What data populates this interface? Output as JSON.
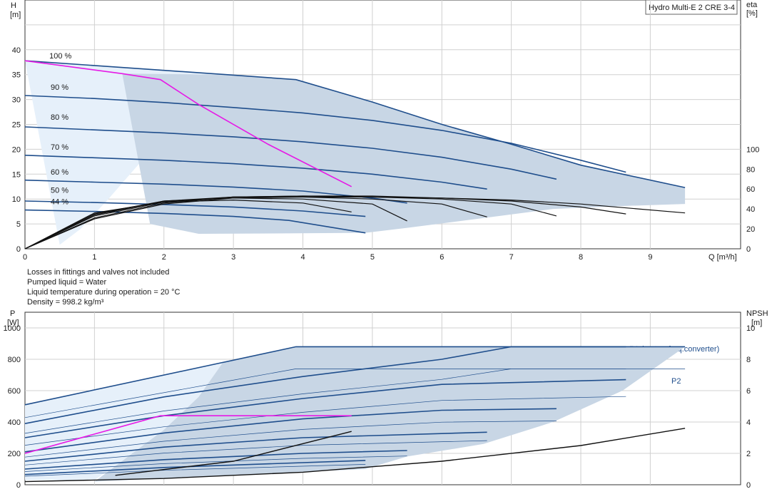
{
  "chart_data": [
    {
      "type": "line",
      "title": "Hydro Multi-E 2 CRE 3-4",
      "xlabel": "Q [m³/h]",
      "ylabel_line1": "H",
      "ylabel_line2": "[m]",
      "y2label_line1": "eta",
      "y2label_line2": "[%]",
      "xlim": [
        0,
        10.3
      ],
      "ylim": [
        0,
        50
      ],
      "y2lim": [
        0,
        250
      ],
      "x_ticks": [
        0,
        1,
        2,
        3,
        4,
        5,
        6,
        7,
        8,
        9
      ],
      "y_ticks": [
        0,
        5,
        10,
        15,
        20,
        25,
        30,
        35,
        40
      ],
      "y2_ticks": [
        0,
        20,
        40,
        60,
        80,
        100
      ],
      "grid": true,
      "speed_labels": [
        "100 %",
        "90 %",
        "80 %",
        "70 %",
        "60 %",
        "50 %",
        "44 %"
      ],
      "head_curves": [
        {
          "speed": 100,
          "x": [
            0,
            2.9,
            3.9,
            5.0,
            6.0,
            7.0,
            8.0,
            9.5
          ],
          "y": [
            37.8,
            35.0,
            34.0,
            29.5,
            25.0,
            21.0,
            16.8,
            12.3
          ]
        },
        {
          "speed": 90,
          "x": [
            0,
            1,
            2,
            3,
            4,
            5,
            6,
            7,
            8,
            8.65
          ],
          "y": [
            30.8,
            30.2,
            29.4,
            28.4,
            27.3,
            25.8,
            23.8,
            21.2,
            17.8,
            15.4
          ]
        },
        {
          "speed": 80,
          "x": [
            0,
            1,
            2,
            3,
            4,
            5,
            6,
            7,
            7.65
          ],
          "y": [
            24.5,
            23.9,
            23.3,
            22.5,
            21.5,
            20.2,
            18.4,
            16.0,
            14.0
          ]
        },
        {
          "speed": 70,
          "x": [
            0,
            1,
            2,
            3,
            4,
            5,
            6,
            6.65
          ],
          "y": [
            18.8,
            18.3,
            17.8,
            17.1,
            16.2,
            15.0,
            13.4,
            12.0
          ]
        },
        {
          "speed": 60,
          "x": [
            0,
            1,
            2,
            3,
            4,
            5,
            5.5
          ],
          "y": [
            13.8,
            13.4,
            13.0,
            12.4,
            11.6,
            10.2,
            9.2
          ]
        },
        {
          "speed": 50,
          "x": [
            0,
            1,
            2,
            3,
            4,
            4.9
          ],
          "y": [
            9.6,
            9.3,
            8.9,
            8.4,
            7.6,
            6.5
          ]
        },
        {
          "speed": 44,
          "x": [
            0,
            1,
            2,
            3,
            3.8,
            4.9
          ],
          "y": [
            7.8,
            7.5,
            7.1,
            6.5,
            5.7,
            3.2
          ]
        }
      ],
      "eta_curves": [
        {
          "x": [
            0,
            1,
            2,
            3,
            4,
            5,
            6,
            7,
            8,
            9.5
          ],
          "y": [
            0,
            30,
            45,
            51,
            52,
            52,
            51,
            49,
            45,
            36
          ]
        },
        {
          "x": [
            0,
            1,
            2,
            3,
            4,
            5,
            6,
            7,
            8,
            8.65
          ],
          "y": [
            0,
            31,
            46,
            52,
            53,
            53,
            51,
            48,
            42,
            35
          ]
        },
        {
          "x": [
            0,
            1,
            2,
            3,
            4,
            5,
            6,
            7,
            7.65
          ],
          "y": [
            0,
            33,
            47,
            52,
            53,
            52,
            50,
            45,
            33
          ]
        },
        {
          "x": [
            0,
            1,
            2,
            3,
            4,
            5,
            6,
            6.65
          ],
          "y": [
            0,
            34,
            48,
            52,
            52,
            50,
            45,
            32
          ]
        },
        {
          "x": [
            0,
            1,
            2,
            3,
            4,
            5,
            5.5
          ],
          "y": [
            0,
            35,
            48,
            51,
            50,
            45,
            28
          ]
        },
        {
          "x": [
            0,
            1,
            2,
            3,
            4,
            4.7
          ],
          "y": [
            0,
            36,
            47,
            49,
            46,
            37
          ]
        }
      ],
      "system_curve": {
        "color": "#e619e6",
        "x": [
          0,
          1.4,
          1.95,
          2.5,
          3.5,
          4.7
        ],
        "y": [
          37.8,
          35.2,
          34.0,
          29.0,
          21.0,
          12.5
        ]
      }
    },
    {
      "type": "line",
      "ylabel_line1": "P",
      "ylabel_line2": "[W]",
      "y2label_line1": "NPSH",
      "y2label_line2": "[m]",
      "xlim": [
        0,
        10.3
      ],
      "ylim": [
        0,
        1100
      ],
      "y2lim": [
        0,
        11
      ],
      "y_ticks": [
        0,
        200,
        400,
        600,
        800,
        1000
      ],
      "y2_ticks": [
        0,
        2,
        4,
        6,
        8,
        10
      ],
      "series_labels": [
        "P1 (motor+freq.converter)",
        "P2"
      ],
      "p1_curves": [
        {
          "x": [
            0,
            2.85,
            3.9,
            9.5
          ],
          "y": [
            510,
            780,
            880,
            880
          ]
        },
        {
          "x": [
            0,
            2,
            4,
            6,
            7,
            8.65
          ],
          "y": [
            390,
            560,
            690,
            800,
            880,
            880
          ]
        },
        {
          "x": [
            0,
            2,
            4,
            6,
            8.65
          ],
          "y": [
            300,
            440,
            550,
            640,
            670
          ]
        },
        {
          "x": [
            0,
            2,
            4,
            6,
            7.65
          ],
          "y": [
            210,
            330,
            420,
            475,
            485
          ]
        },
        {
          "x": [
            0,
            2,
            4,
            6.65
          ],
          "y": [
            150,
            240,
            300,
            335
          ]
        },
        {
          "x": [
            0,
            2,
            4,
            5.5
          ],
          "y": [
            100,
            160,
            200,
            218
          ]
        },
        {
          "x": [
            0,
            2,
            4.9
          ],
          "y": [
            65,
            110,
            155
          ]
        }
      ],
      "npsh_curves": [
        {
          "x": [
            0,
            2,
            4,
            6,
            8,
            9.5
          ],
          "y": [
            0.2,
            0.4,
            0.8,
            1.5,
            2.5,
            3.6
          ]
        },
        {
          "x": [
            1.3,
            3,
            4.7
          ],
          "y": [
            0.6,
            1.5,
            3.4
          ]
        }
      ],
      "system_curve": {
        "color": "#e619e6",
        "x": [
          0,
          1.95,
          4.7
        ],
        "y": [
          200,
          440,
          440
        ]
      }
    }
  ],
  "notes": [
    "Losses in fittings and valves not included",
    "Pumped liquid = Water",
    "Liquid temperature during operation = 20 °C",
    "Density = 998.2 kg/m³"
  ],
  "colors": {
    "curve": "#1f4e8c",
    "shade_dark": "#c8d6e5",
    "shade_light": "#e6f0fa",
    "system": "#e619e6",
    "black": "#111111"
  }
}
